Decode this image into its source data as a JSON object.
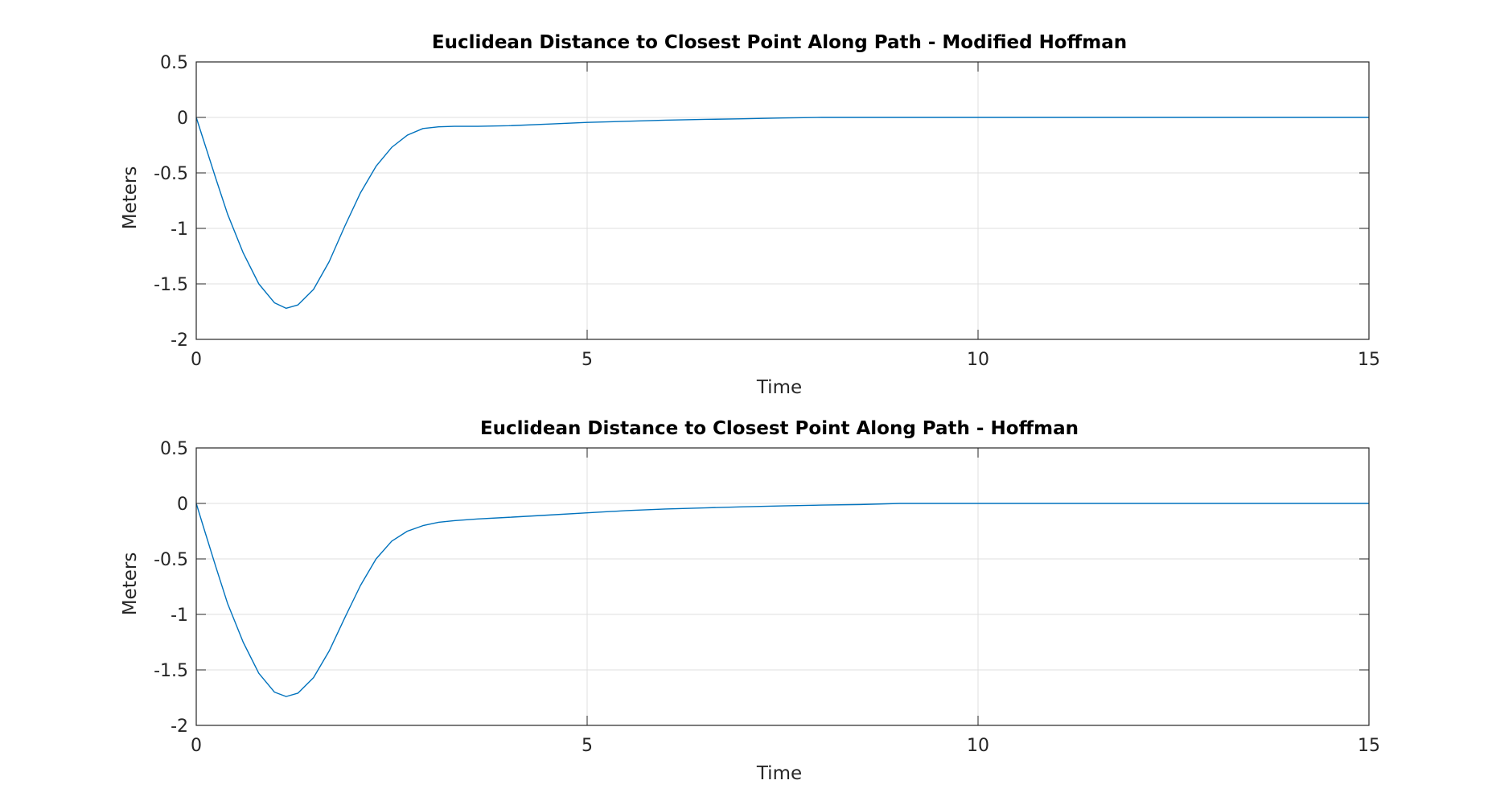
{
  "chart_data": [
    {
      "type": "line",
      "title": "Euclidean Distance to Closest Point Along Path - Modified Hoffman",
      "xlabel": "Time",
      "ylabel": "Meters",
      "xlim": [
        0,
        15
      ],
      "ylim": [
        -2,
        0.5
      ],
      "xticks": [
        0,
        5,
        10,
        15
      ],
      "xtick_labels": [
        "0",
        "5",
        "10",
        "15"
      ],
      "yticks": [
        0.5,
        0,
        -0.5,
        -1,
        -1.5,
        -2
      ],
      "ytick_labels": [
        "0.5",
        "0",
        "-0.5",
        "-1",
        "-1.5",
        "-2"
      ],
      "grid": true,
      "color": "#0072BD",
      "series": [
        {
          "x": [
            0,
            0.1,
            0.25,
            0.4,
            0.6,
            0.8,
            1.0,
            1.15,
            1.3,
            1.5,
            1.7,
            1.9,
            2.1,
            2.3,
            2.5,
            2.7,
            2.9,
            3.1,
            3.3,
            3.6,
            4.0,
            4.5,
            5.0,
            5.5,
            6.0,
            6.5,
            7.0,
            7.5,
            8.0,
            9.0,
            10.0,
            11.0,
            12.0,
            13.0,
            14.0,
            15.0
          ],
          "y": [
            0,
            -0.22,
            -0.55,
            -0.87,
            -1.22,
            -1.5,
            -1.67,
            -1.72,
            -1.69,
            -1.55,
            -1.3,
            -0.98,
            -0.68,
            -0.44,
            -0.27,
            -0.16,
            -0.1,
            -0.085,
            -0.08,
            -0.08,
            -0.075,
            -0.06,
            -0.045,
            -0.035,
            -0.025,
            -0.018,
            -0.012,
            -0.005,
            0,
            0,
            0,
            0,
            0,
            0,
            0,
            0
          ]
        }
      ]
    },
    {
      "type": "line",
      "title": "Euclidean Distance to Closest Point Along Path - Hoffman",
      "xlabel": "Time",
      "ylabel": "Meters",
      "xlim": [
        0,
        15
      ],
      "ylim": [
        -2,
        0.5
      ],
      "xticks": [
        0,
        5,
        10,
        15
      ],
      "xtick_labels": [
        "0",
        "5",
        "10",
        "15"
      ],
      "yticks": [
        0.5,
        0,
        -0.5,
        -1,
        -1.5,
        -2
      ],
      "ytick_labels": [
        "0.5",
        "0",
        "-0.5",
        "-1",
        "-1.5",
        "-2"
      ],
      "grid": true,
      "color": "#0072BD",
      "series": [
        {
          "x": [
            0,
            0.1,
            0.25,
            0.4,
            0.6,
            0.8,
            1.0,
            1.15,
            1.3,
            1.5,
            1.7,
            1.9,
            2.1,
            2.3,
            2.5,
            2.7,
            2.9,
            3.1,
            3.3,
            3.6,
            4.0,
            4.5,
            5.0,
            5.5,
            6.0,
            6.5,
            7.0,
            7.5,
            8.0,
            8.5,
            9.0,
            10.0,
            11.0,
            12.0,
            13.0,
            14.0,
            15.0
          ],
          "y": [
            0,
            -0.23,
            -0.57,
            -0.9,
            -1.25,
            -1.53,
            -1.7,
            -1.74,
            -1.71,
            -1.57,
            -1.33,
            -1.03,
            -0.74,
            -0.5,
            -0.34,
            -0.25,
            -0.2,
            -0.17,
            -0.155,
            -0.14,
            -0.125,
            -0.105,
            -0.085,
            -0.065,
            -0.05,
            -0.04,
            -0.03,
            -0.022,
            -0.015,
            -0.01,
            0,
            0,
            0,
            0,
            0,
            0,
            0
          ]
        }
      ]
    }
  ]
}
